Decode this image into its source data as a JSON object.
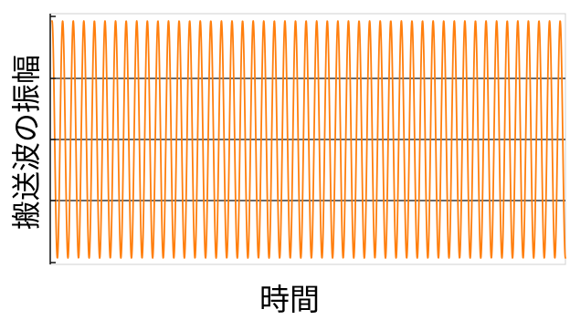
{
  "chart_data": {
    "type": "line",
    "title": "",
    "xlabel": "時間",
    "ylabel": "搬送波の振幅",
    "grid": true,
    "legend": "none",
    "ylim": [
      -1,
      1
    ],
    "series": [
      {
        "color": "#ff7f0e",
        "waveform": "sine",
        "cycles": 48.5,
        "amplitude": 0.97
      }
    ]
  }
}
